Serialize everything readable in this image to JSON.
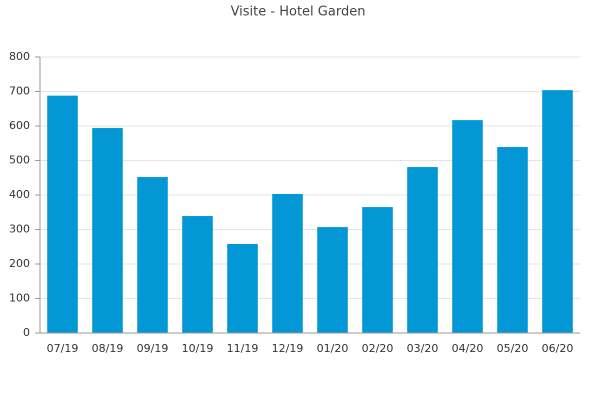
{
  "chart_data": {
    "type": "bar",
    "title": "Visite - Hotel Garden",
    "categories": [
      "07/19",
      "08/19",
      "09/19",
      "10/19",
      "11/19",
      "12/19",
      "01/20",
      "02/20",
      "03/20",
      "04/20",
      "05/20",
      "06/20"
    ],
    "values": [
      688,
      594,
      452,
      339,
      258,
      403,
      307,
      365,
      481,
      617,
      539,
      704
    ],
    "color": "#0397d6",
    "ylim": [
      0,
      800
    ],
    "yticks": [
      0,
      100,
      200,
      300,
      400,
      500,
      600,
      700,
      800
    ],
    "grid": true
  }
}
